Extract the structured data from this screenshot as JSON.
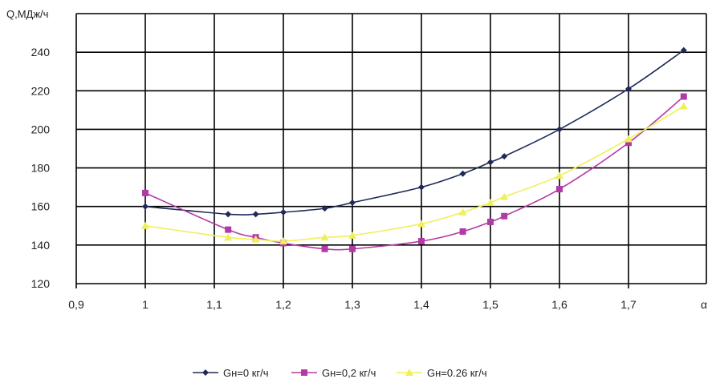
{
  "chart_data": {
    "type": "line",
    "ylabel": "Q,МДж/ч",
    "xlabel": "α",
    "xlim": [
      0.9,
      1.8
    ],
    "ylim": [
      120,
      260
    ],
    "xticks": [
      "0,9",
      "1",
      "1,1",
      "1,2",
      "1,3",
      "1,4",
      "1,5",
      "1,6",
      "1,7"
    ],
    "yticks": [
      "120",
      "140",
      "160",
      "180",
      "200",
      "220",
      "240"
    ],
    "grid": true,
    "legend_position": "bottom",
    "x": [
      1.0,
      1.12,
      1.16,
      1.2,
      1.26,
      1.3,
      1.4,
      1.46,
      1.5,
      1.52,
      1.6,
      1.7,
      1.78
    ],
    "series": [
      {
        "name": "Gн=0 кг/ч",
        "color": "#1f2a5a",
        "marker": "diamond",
        "values": [
          160,
          156,
          156,
          157,
          159,
          162,
          170,
          177,
          183,
          186,
          200,
          221,
          241
        ]
      },
      {
        "name": "Gн=0,2 кг/ч",
        "color": "#b23aa6",
        "marker": "square",
        "values": [
          167,
          148,
          144,
          141,
          138,
          138,
          142,
          147,
          152,
          155,
          169,
          193,
          217
        ]
      },
      {
        "name": "Gн=0.26 кг/ч",
        "color": "#f0ef5a",
        "marker": "triangle",
        "values": [
          150,
          144,
          143,
          142,
          144,
          145,
          151,
          157,
          162,
          165,
          176,
          195,
          212
        ]
      }
    ]
  }
}
